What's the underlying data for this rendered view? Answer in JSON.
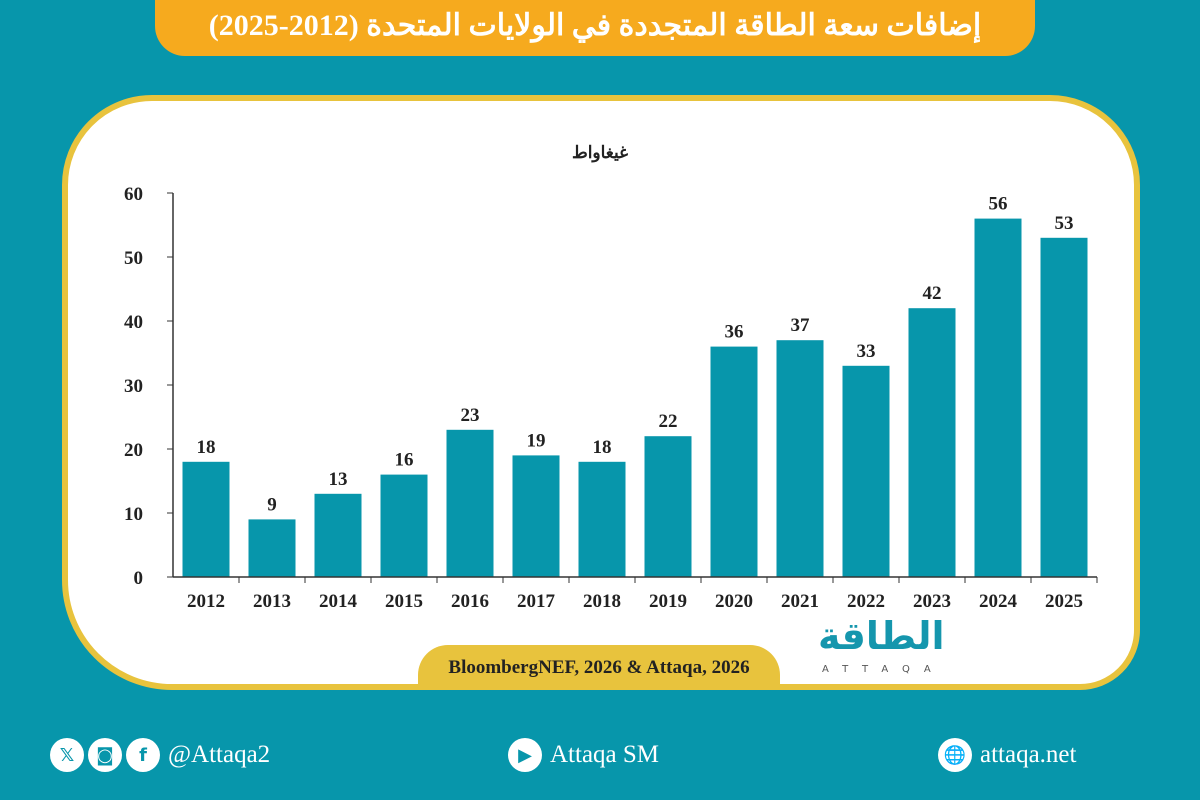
{
  "title": "إضافات سعة الطاقة المتجددة في الولايات المتحدة (2012-2025)",
  "source": "BloombergNEF, 2026 & Attaqa, 2026",
  "logo": {
    "arabic": "الطاقة",
    "latin": "ATTAQA"
  },
  "footer": {
    "social_handle": "@Attaqa2",
    "youtube": "Attaqa SM",
    "website": "attaqa.net",
    "icons": [
      "x-icon",
      "instagram-icon",
      "facebook-icon",
      "youtube-icon",
      "globe-icon"
    ]
  },
  "colors": {
    "background": "#0796ab",
    "bar": "#0796ab",
    "banner": "#f6aa1e",
    "border": "#e8c33d"
  },
  "chart_data": {
    "type": "bar",
    "title": "إضافات سعة الطاقة المتجددة في الولايات المتحدة (2012-2025)",
    "ylabel": "غيغاواط",
    "categories": [
      "2012",
      "2013",
      "2014",
      "2015",
      "2016",
      "2017",
      "2018",
      "2019",
      "2020",
      "2021",
      "2022",
      "2023",
      "2024",
      "2025"
    ],
    "values": [
      18,
      9,
      13,
      16,
      23,
      19,
      18,
      22,
      36,
      37,
      33,
      42,
      56,
      53
    ],
    "ylim": [
      0,
      60
    ],
    "yticks": [
      0,
      10,
      20,
      30,
      40,
      50,
      60
    ],
    "grid": false,
    "data_labels": true
  }
}
